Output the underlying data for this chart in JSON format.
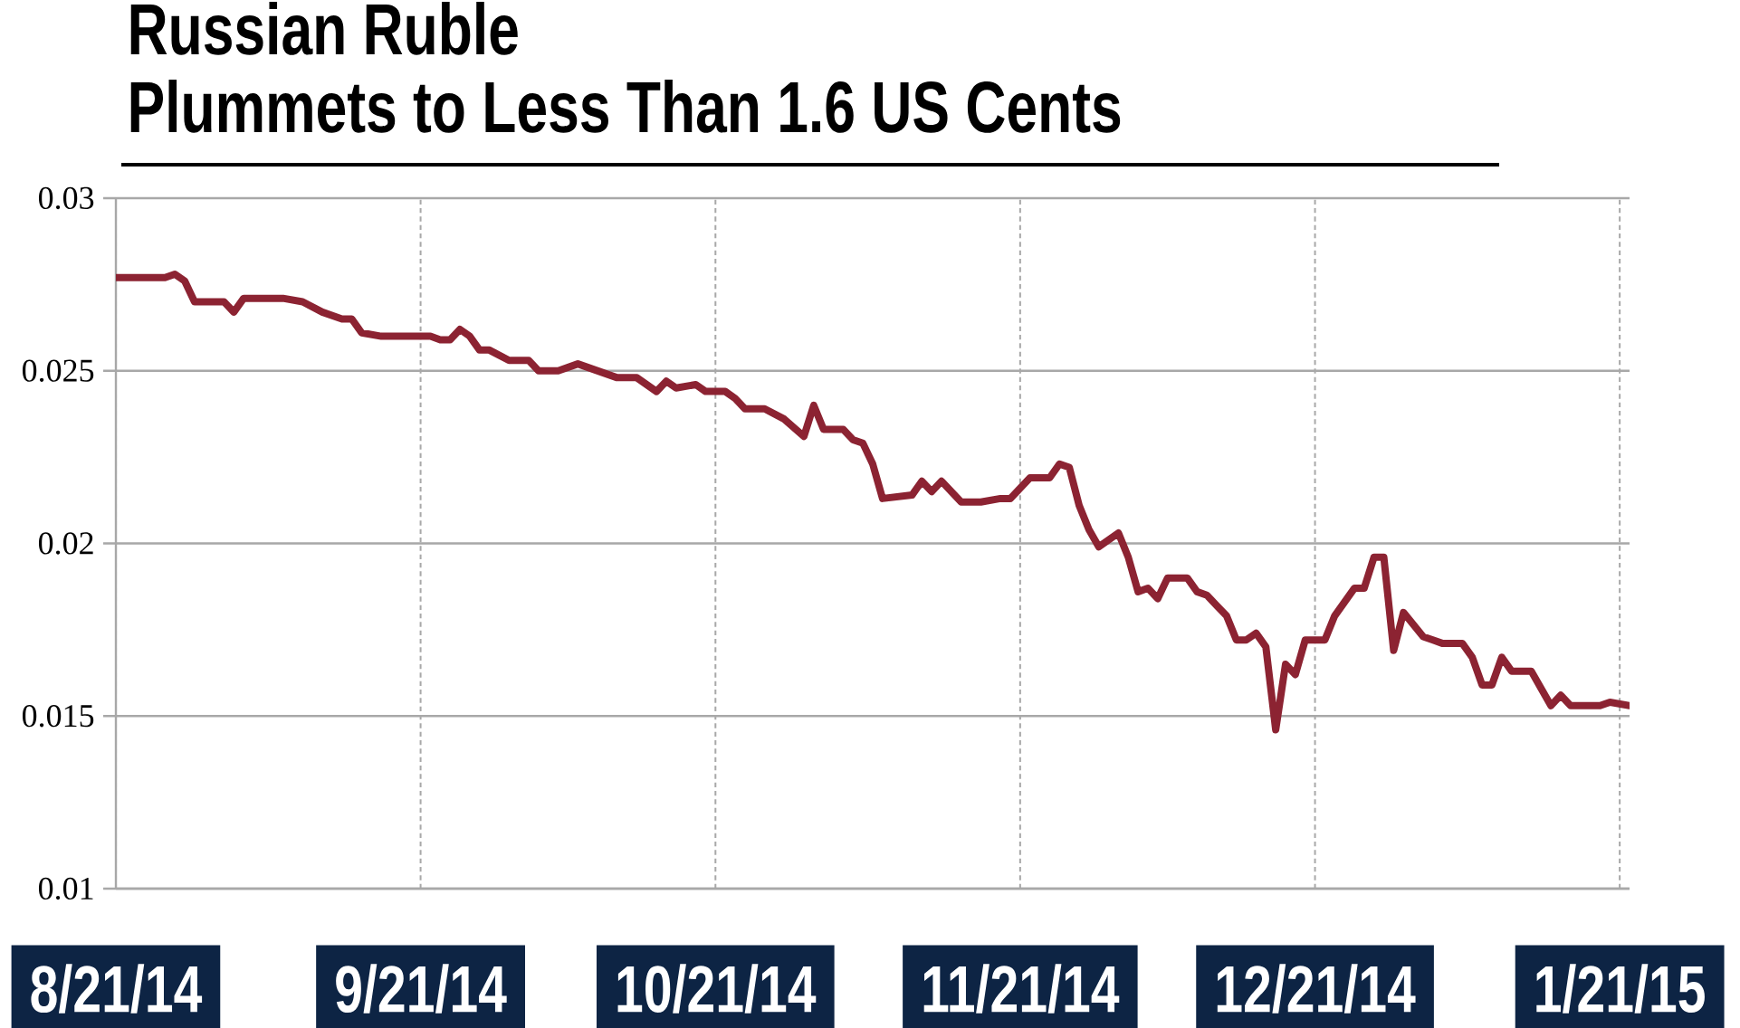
{
  "chart_data": {
    "type": "line",
    "title": "Russian Ruble",
    "subtitle": "Plummets to Less Than 1.6 US Cents",
    "x": [
      "2014-08-21",
      "2014-08-23",
      "2014-08-26",
      "2014-08-27",
      "2014-08-28",
      "2014-08-29",
      "2014-09-01",
      "2014-09-02",
      "2014-09-03",
      "2014-09-07",
      "2014-09-09",
      "2014-09-11",
      "2014-09-13",
      "2014-09-14",
      "2014-09-15",
      "2014-09-17",
      "2014-09-22",
      "2014-09-23",
      "2014-09-24",
      "2014-09-25",
      "2014-09-26",
      "2014-09-27",
      "2014-09-28",
      "2014-09-30",
      "2014-10-02",
      "2014-10-03",
      "2014-10-05",
      "2014-10-07",
      "2014-10-09",
      "2014-10-11",
      "2014-10-13",
      "2014-10-15",
      "2014-10-16",
      "2014-10-17",
      "2014-10-19",
      "2014-10-20",
      "2014-10-22",
      "2014-10-23",
      "2014-10-24",
      "2014-10-26",
      "2014-10-28",
      "2014-10-30",
      "2014-10-31",
      "2014-11-01",
      "2014-11-03",
      "2014-11-04",
      "2014-11-05",
      "2014-11-06",
      "2014-11-07",
      "2014-11-10",
      "2014-11-11",
      "2014-11-12",
      "2014-11-13",
      "2014-11-15",
      "2014-11-17",
      "2014-11-19",
      "2014-11-20",
      "2014-11-22",
      "2014-11-24",
      "2014-11-25",
      "2014-11-26",
      "2014-11-27",
      "2014-11-28",
      "2014-11-29",
      "2014-12-01",
      "2014-12-02",
      "2014-12-03",
      "2014-12-04",
      "2014-12-05",
      "2014-12-06",
      "2014-12-08",
      "2014-12-09",
      "2014-12-10",
      "2014-12-11",
      "2014-12-12",
      "2014-12-13",
      "2014-12-14",
      "2014-12-15",
      "2014-12-16",
      "2014-12-17",
      "2014-12-18",
      "2014-12-19",
      "2014-12-20",
      "2014-12-22",
      "2014-12-23",
      "2014-12-24",
      "2014-12-25",
      "2014-12-26",
      "2014-12-27",
      "2014-12-28",
      "2014-12-29",
      "2014-12-30",
      "2015-01-01",
      "2015-01-02",
      "2015-01-03",
      "2015-01-05",
      "2015-01-06",
      "2015-01-07",
      "2015-01-08",
      "2015-01-09",
      "2015-01-10",
      "2015-01-12",
      "2015-01-14",
      "2015-01-15",
      "2015-01-16",
      "2015-01-19",
      "2015-01-20",
      "2015-01-22"
    ],
    "series": [
      {
        "color": "#8c2332",
        "values": [
          0.0277,
          0.0277,
          0.0277,
          0.0278,
          0.0276,
          0.027,
          0.027,
          0.0267,
          0.0271,
          0.0271,
          0.027,
          0.0267,
          0.0265,
          0.0265,
          0.0261,
          0.026,
          0.026,
          0.0259,
          0.0259,
          0.0262,
          0.026,
          0.0256,
          0.0256,
          0.0253,
          0.0253,
          0.025,
          0.025,
          0.0252,
          0.025,
          0.0248,
          0.0248,
          0.0244,
          0.0247,
          0.0245,
          0.0246,
          0.0244,
          0.0244,
          0.0242,
          0.0239,
          0.0239,
          0.0236,
          0.0231,
          0.024,
          0.0233,
          0.0233,
          0.023,
          0.0229,
          0.0223,
          0.0213,
          0.0214,
          0.0218,
          0.0215,
          0.0218,
          0.0212,
          0.0212,
          0.0213,
          0.0213,
          0.0219,
          0.0219,
          0.0223,
          0.0222,
          0.0211,
          0.0204,
          0.0199,
          0.0203,
          0.0196,
          0.0186,
          0.0187,
          0.0184,
          0.019,
          0.019,
          0.0186,
          0.0185,
          0.0182,
          0.0179,
          0.0172,
          0.0172,
          0.0174,
          0.017,
          0.0146,
          0.0165,
          0.0162,
          0.0172,
          0.0172,
          0.0179,
          0.0183,
          0.0187,
          0.0187,
          0.0196,
          0.0196,
          0.0169,
          0.018,
          0.0173,
          0.0172,
          0.0171,
          0.0171,
          0.0167,
          0.0159,
          0.0159,
          0.0167,
          0.0163,
          0.0163,
          0.0153,
          0.0156,
          0.0153,
          0.0153,
          0.0154,
          0.0153
        ]
      }
    ],
    "xlim": [
      "2014-08-21",
      "2015-01-22"
    ],
    "xticks": [
      {
        "value": "2014-08-21",
        "label": "8/21/14"
      },
      {
        "value": "2014-09-21",
        "label": "9/21/14"
      },
      {
        "value": "2014-10-21",
        "label": "10/21/14"
      },
      {
        "value": "2014-11-21",
        "label": "11/21/14"
      },
      {
        "value": "2014-12-21",
        "label": "12/21/14"
      },
      {
        "value": "2015-01-21",
        "label": "1/21/15"
      }
    ],
    "ylim": [
      0.01,
      0.03
    ],
    "yticks": [
      0.01,
      0.015,
      0.02,
      0.025,
      0.03
    ],
    "grid": true,
    "marker": "none",
    "line_style": "solid"
  }
}
